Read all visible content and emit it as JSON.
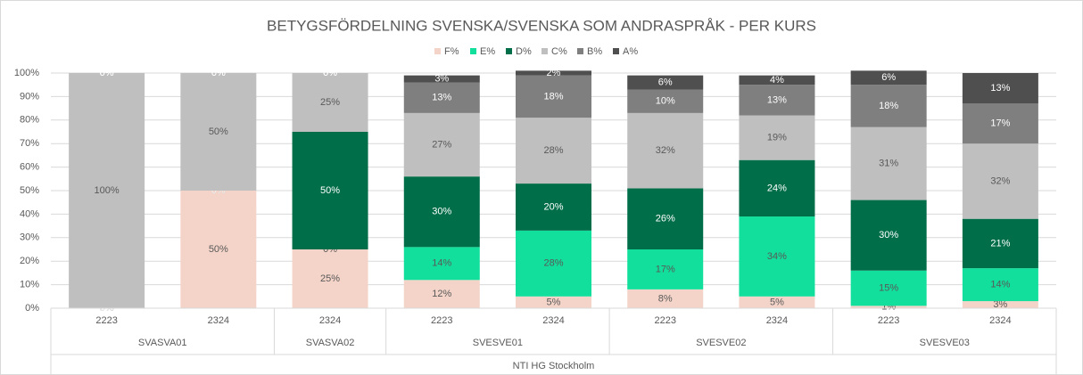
{
  "chart_data": {
    "type": "stacked_bar",
    "title": "BETYGSFÖRDELNING SVENSKA/SVENSKA SOM ANDRASPRÅK - PER KURS",
    "categories": [
      "2223",
      "2324",
      "2324",
      "2223",
      "2324",
      "2223",
      "2324",
      "2223",
      "2324"
    ],
    "groups": [
      {
        "name": "SVASVA01",
        "size": 2
      },
      {
        "name": "SVASVA02",
        "size": 1
      },
      {
        "name": "SVESVE01",
        "size": 2
      },
      {
        "name": "SVESVE02",
        "size": 2
      },
      {
        "name": "SVESVE03",
        "size": 2
      }
    ],
    "school": "NTI HG Stockholm",
    "series": [
      {
        "name": "F%",
        "color": "#f4d4c8",
        "values": [
          0,
          50,
          25,
          12,
          5,
          8,
          5,
          1,
          3
        ],
        "value_labels": [
          "0%",
          "50%",
          "25%",
          "12%",
          "5%",
          "8%",
          "5%",
          "1%",
          "3%"
        ]
      },
      {
        "name": "E%",
        "color": "#11df9b",
        "values": [
          0,
          0,
          0,
          14,
          28,
          17,
          34,
          15,
          14
        ],
        "value_labels": [
          "0%",
          "0%",
          "0%",
          "14%",
          "28%",
          "17%",
          "34%",
          "15%",
          "14%"
        ]
      },
      {
        "name": "D%",
        "color": "#006e48",
        "values": [
          0,
          0,
          50,
          30,
          20,
          26,
          24,
          30,
          21
        ],
        "value_labels": [
          "0%",
          "0%",
          "50%",
          "30%",
          "20%",
          "26%",
          "24%",
          "30%",
          "21%"
        ]
      },
      {
        "name": "C%",
        "color": "#bfbfbf",
        "values": [
          100,
          50,
          25,
          27,
          28,
          32,
          19,
          31,
          32
        ],
        "value_labels": [
          "100%",
          "50%",
          "25%",
          "27%",
          "28%",
          "32%",
          "19%",
          "31%",
          "32%"
        ]
      },
      {
        "name": "B%",
        "color": "#7f7f7f",
        "values": [
          0,
          0,
          0,
          13,
          18,
          10,
          13,
          18,
          17
        ],
        "value_labels": [
          "0%",
          "0%",
          "0%",
          "13%",
          "18%",
          "10%",
          "13%",
          "18%",
          "17%"
        ]
      },
      {
        "name": "A%",
        "color": "#4f4f4f",
        "values": [
          0,
          0,
          0,
          3,
          2,
          6,
          4,
          6,
          13
        ],
        "value_labels": [
          "0%",
          "0%",
          "0%",
          "3%",
          "2%",
          "6%",
          "4%",
          "6%",
          "13%"
        ]
      }
    ],
    "ylim": [
      0,
      100
    ],
    "yticks": [
      {
        "value": 0,
        "label": "0%"
      },
      {
        "value": 10,
        "label": "10%"
      },
      {
        "value": 20,
        "label": "20%"
      },
      {
        "value": 30,
        "label": "30%"
      },
      {
        "value": 40,
        "label": "40%"
      },
      {
        "value": 50,
        "label": "50%"
      },
      {
        "value": 60,
        "label": "60%"
      },
      {
        "value": 70,
        "label": "70%"
      },
      {
        "value": 80,
        "label": "80%"
      },
      {
        "value": 90,
        "label": "90%"
      },
      {
        "value": 100,
        "label": "100%"
      }
    ],
    "grid": true,
    "legend": "top"
  }
}
